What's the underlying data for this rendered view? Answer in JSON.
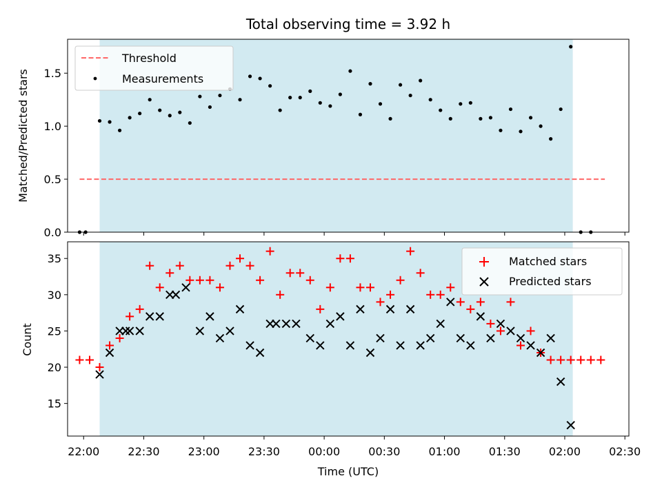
{
  "chart_data": [
    {
      "type": "scatter",
      "title": "Total observing time = 3.92 h",
      "ylabel": "Matched/Predicted stars",
      "xlabel": "",
      "ylim": [
        0,
        1.82
      ],
      "yticks": [
        "0.0",
        "0.5",
        "1.0",
        "1.5"
      ],
      "observing_window": {
        "start": "22:08",
        "end": "02:04",
        "color": "#add8e6"
      },
      "legend_position": "upper-left",
      "series": [
        {
          "name": "Threshold",
          "kind": "dashed-line",
          "color": "#ff6666",
          "x": [
            "21:58",
            "02:20"
          ],
          "y": [
            0.5,
            0.5
          ]
        },
        {
          "name": "Measurements",
          "kind": "points",
          "color": "#000000",
          "x": [
            "21:58",
            "22:01",
            "22:08",
            "22:13",
            "22:18",
            "22:23",
            "22:28",
            "22:33",
            "22:38",
            "22:43",
            "22:48",
            "22:53",
            "22:58",
            "23:03",
            "23:08",
            "23:13",
            "23:18",
            "23:23",
            "23:28",
            "23:33",
            "23:38",
            "23:43",
            "23:48",
            "23:53",
            "23:58",
            "24:03",
            "24:08",
            "24:13",
            "24:18",
            "24:23",
            "24:28",
            "24:33",
            "24:38",
            "24:43",
            "24:48",
            "24:53",
            "24:58",
            "25:03",
            "25:08",
            "25:13",
            "25:18",
            "25:23",
            "25:28",
            "25:33",
            "25:38",
            "25:43",
            "25:48",
            "25:53",
            "25:58",
            "26:03",
            "26:08",
            "26:13"
          ],
          "y": [
            0.0,
            0.0,
            1.05,
            1.04,
            0.96,
            1.08,
            1.12,
            1.25,
            1.15,
            1.1,
            1.13,
            1.03,
            1.28,
            1.18,
            1.29,
            1.35,
            1.25,
            1.47,
            1.45,
            1.38,
            1.15,
            1.27,
            1.27,
            1.33,
            1.22,
            1.19,
            1.3,
            1.52,
            1.11,
            1.4,
            1.21,
            1.07,
            1.39,
            1.29,
            1.43,
            1.25,
            1.15,
            1.07,
            1.21,
            1.22,
            1.07,
            1.08,
            0.96,
            1.16,
            0.95,
            1.08,
            1.0,
            0.88,
            1.16,
            1.75,
            0.0,
            0.0
          ]
        }
      ]
    },
    {
      "type": "scatter",
      "xlabel": "Time (UTC)",
      "ylabel": "Count",
      "ylim": [
        10.5,
        37.3
      ],
      "yticks": [
        "15",
        "20",
        "25",
        "30",
        "35"
      ],
      "xlim": [
        "21:52",
        "02:32"
      ],
      "xticks": [
        "22:00",
        "22:30",
        "23:00",
        "23:30",
        "00:00",
        "00:30",
        "01:00",
        "01:30",
        "02:00",
        "02:30"
      ],
      "observing_window": {
        "start": "22:08",
        "end": "02:04",
        "color": "#add8e6"
      },
      "legend_position": "upper-right",
      "series": [
        {
          "name": "Matched stars",
          "marker": "plus",
          "color": "#ff0000",
          "x": [
            "21:58",
            "22:03",
            "22:08",
            "22:13",
            "22:18",
            "22:23",
            "22:28",
            "22:33",
            "22:38",
            "22:43",
            "22:48",
            "22:53",
            "22:58",
            "23:03",
            "23:08",
            "23:13",
            "23:18",
            "23:23",
            "23:28",
            "23:33",
            "23:38",
            "23:43",
            "23:48",
            "23:53",
            "23:58",
            "24:03",
            "24:08",
            "24:13",
            "24:18",
            "24:23",
            "24:28",
            "24:33",
            "24:38",
            "24:43",
            "24:48",
            "24:53",
            "24:58",
            "25:03",
            "25:08",
            "25:13",
            "25:18",
            "25:23",
            "25:28",
            "25:33",
            "25:38",
            "25:43",
            "25:48",
            "25:53",
            "25:58",
            "26:03",
            "26:08",
            "26:13",
            "26:18"
          ],
          "y": [
            21,
            21,
            20,
            23,
            24,
            27,
            28,
            34,
            31,
            33,
            34,
            32,
            32,
            32,
            31,
            34,
            35,
            34,
            32,
            36,
            30,
            33,
            33,
            32,
            28,
            31,
            35,
            35,
            31,
            31,
            29,
            30,
            32,
            36,
            33,
            30,
            30,
            31,
            29,
            28,
            29,
            26,
            25,
            29,
            23,
            25,
            22,
            21,
            21,
            21,
            21,
            21,
            21
          ]
        },
        {
          "name": "Predicted stars",
          "marker": "x",
          "color": "#000000",
          "x": [
            "22:08",
            "22:13",
            "22:18",
            "22:21",
            "22:23",
            "22:28",
            "22:33",
            "22:38",
            "22:43",
            "22:46",
            "22:51",
            "22:58",
            "23:03",
            "23:08",
            "23:13",
            "23:18",
            "23:23",
            "23:28",
            "23:33",
            "23:36",
            "23:41",
            "23:46",
            "23:53",
            "23:58",
            "24:03",
            "24:08",
            "24:13",
            "24:18",
            "24:23",
            "24:28",
            "24:33",
            "24:38",
            "24:43",
            "24:48",
            "24:53",
            "24:58",
            "25:03",
            "25:08",
            "25:13",
            "25:18",
            "25:23",
            "25:28",
            "25:33",
            "25:38",
            "25:43",
            "25:48",
            "25:53",
            "25:58",
            "26:03"
          ],
          "y": [
            19,
            22,
            25,
            25,
            25,
            25,
            27,
            27,
            30,
            30,
            31,
            25,
            27,
            24,
            25,
            28,
            23,
            22,
            26,
            26,
            26,
            26,
            24,
            23,
            26,
            27,
            23,
            28,
            22,
            24,
            28,
            23,
            28,
            23,
            24,
            26,
            29,
            24,
            23,
            27,
            24,
            26,
            25,
            24,
            23,
            22,
            24,
            18,
            12
          ]
        }
      ]
    }
  ]
}
